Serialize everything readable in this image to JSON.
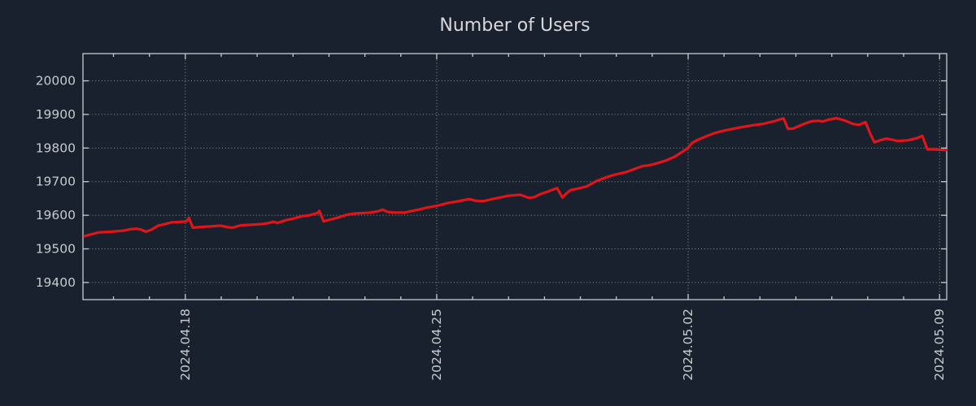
{
  "title": "Number of Users",
  "colors": {
    "background": "#19212e",
    "line": "#e01519",
    "title_text": "#d6d8db",
    "tick_text": "#c6cacf",
    "axis": "#c8ccd1",
    "grid": "#a9b0b8"
  },
  "chart_data": {
    "type": "line",
    "title": "Number of Users",
    "xlabel": "",
    "ylabel": "",
    "x_unit": "days since 2024.04.15",
    "xlim": [
      0.15,
      24.2
    ],
    "ylim": [
      19349,
      20081
    ],
    "grid": true,
    "legend": "none",
    "x_major_ticks": [
      {
        "d": 3,
        "label": "2024.04.18"
      },
      {
        "d": 10,
        "label": "2024.04.25"
      },
      {
        "d": 17,
        "label": "2024.05.02"
      },
      {
        "d": 24,
        "label": "2024.05.09"
      }
    ],
    "x_minor_tick_interval_days": 1,
    "y_ticks": [
      19400,
      19500,
      19600,
      19700,
      19800,
      19900,
      20000
    ],
    "series": [
      {
        "name": "Number of Users",
        "color": "#e01519",
        "points": [
          [
            0.19,
            19538
          ],
          [
            0.37,
            19543
          ],
          [
            0.59,
            19549
          ],
          [
            0.93,
            19551
          ],
          [
            1.27,
            19554
          ],
          [
            1.5,
            19559
          ],
          [
            1.65,
            19560
          ],
          [
            1.77,
            19557
          ],
          [
            1.9,
            19551
          ],
          [
            2.06,
            19557
          ],
          [
            2.24,
            19569
          ],
          [
            2.4,
            19573
          ],
          [
            2.62,
            19579
          ],
          [
            2.85,
            19580
          ],
          [
            3.03,
            19582
          ],
          [
            3.1,
            19592
          ],
          [
            3.21,
            19563
          ],
          [
            3.41,
            19565
          ],
          [
            3.71,
            19567
          ],
          [
            3.98,
            19569
          ],
          [
            4.21,
            19564
          ],
          [
            4.32,
            19563
          ],
          [
            4.54,
            19570
          ],
          [
            4.88,
            19572
          ],
          [
            5.15,
            19574
          ],
          [
            5.33,
            19577
          ],
          [
            5.45,
            19581
          ],
          [
            5.56,
            19577
          ],
          [
            5.79,
            19585
          ],
          [
            6.01,
            19590
          ],
          [
            6.24,
            19597
          ],
          [
            6.46,
            19600
          ],
          [
            6.69,
            19607
          ],
          [
            6.73,
            19613
          ],
          [
            6.85,
            19582
          ],
          [
            7.03,
            19587
          ],
          [
            7.25,
            19593
          ],
          [
            7.48,
            19601
          ],
          [
            7.7,
            19605
          ],
          [
            8.0,
            19607
          ],
          [
            8.16,
            19608
          ],
          [
            8.38,
            19612
          ],
          [
            8.49,
            19617
          ],
          [
            8.63,
            19610
          ],
          [
            8.85,
            19608
          ],
          [
            9.1,
            19608
          ],
          [
            9.28,
            19612
          ],
          [
            9.51,
            19617
          ],
          [
            9.73,
            19623
          ],
          [
            10.0,
            19628
          ],
          [
            10.29,
            19636
          ],
          [
            10.52,
            19640
          ],
          [
            10.75,
            19645
          ],
          [
            10.91,
            19648
          ],
          [
            11.09,
            19643
          ],
          [
            11.31,
            19642
          ],
          [
            11.54,
            19648
          ],
          [
            11.77,
            19653
          ],
          [
            11.99,
            19658
          ],
          [
            12.33,
            19661
          ],
          [
            12.56,
            19652
          ],
          [
            12.71,
            19654
          ],
          [
            12.89,
            19663
          ],
          [
            13.08,
            19670
          ],
          [
            13.23,
            19676
          ],
          [
            13.35,
            19681
          ],
          [
            13.5,
            19653
          ],
          [
            13.64,
            19668
          ],
          [
            13.73,
            19675
          ],
          [
            13.96,
            19680
          ],
          [
            14.18,
            19686
          ],
          [
            14.45,
            19702
          ],
          [
            14.7,
            19712
          ],
          [
            14.93,
            19720
          ],
          [
            15.26,
            19728
          ],
          [
            15.49,
            19737
          ],
          [
            15.72,
            19746
          ],
          [
            15.87,
            19748
          ],
          [
            16.05,
            19752
          ],
          [
            16.39,
            19763
          ],
          [
            16.62,
            19774
          ],
          [
            16.8,
            19786
          ],
          [
            16.98,
            19799
          ],
          [
            17.12,
            19816
          ],
          [
            17.3,
            19826
          ],
          [
            17.57,
            19838
          ],
          [
            17.75,
            19845
          ],
          [
            17.97,
            19851
          ],
          [
            18.2,
            19856
          ],
          [
            18.47,
            19862
          ],
          [
            18.76,
            19867
          ],
          [
            19.1,
            19872
          ],
          [
            19.37,
            19879
          ],
          [
            19.55,
            19885
          ],
          [
            19.66,
            19888
          ],
          [
            19.78,
            19857
          ],
          [
            19.93,
            19858
          ],
          [
            20.23,
            19872
          ],
          [
            20.45,
            19880
          ],
          [
            20.63,
            19881
          ],
          [
            20.75,
            19879
          ],
          [
            20.9,
            19884
          ],
          [
            21.13,
            19889
          ],
          [
            21.36,
            19882
          ],
          [
            21.58,
            19872
          ],
          [
            21.76,
            19869
          ],
          [
            21.94,
            19877
          ],
          [
            22.08,
            19840
          ],
          [
            22.19,
            19817
          ],
          [
            22.37,
            19824
          ],
          [
            22.53,
            19828
          ],
          [
            22.83,
            19821
          ],
          [
            23.12,
            19823
          ],
          [
            23.39,
            19830
          ],
          [
            23.52,
            19836
          ],
          [
            23.66,
            19796
          ],
          [
            23.84,
            19796
          ],
          [
            24.0,
            19795
          ],
          [
            24.18,
            19794
          ]
        ]
      }
    ]
  }
}
